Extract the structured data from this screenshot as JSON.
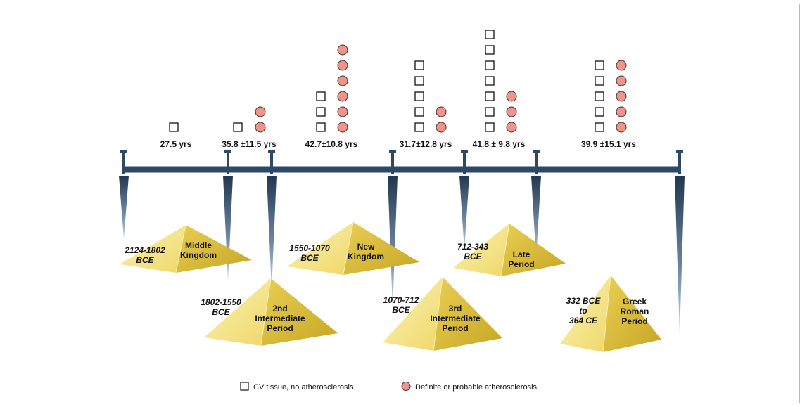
{
  "legend": {
    "no_athero_label": "CV tissue, no atherosclerosis",
    "athero_label": "Definite or probable atherosclerosis"
  },
  "colors": {
    "timeline": "#2e4968",
    "circle_fill": "#f0948a",
    "pyramid_light": "#f4e27c",
    "pyramid_dark": "#d6ba33"
  },
  "groups": [
    {
      "age": "27.5 yrs",
      "squares": 1,
      "circles": 0
    },
    {
      "age": "35.8 ±11.5 yrs",
      "squares": 1,
      "circles": 2
    },
    {
      "age": "42.7±10.8 yrs",
      "squares": 3,
      "circles": 6
    },
    {
      "age": "31.7±12.8 yrs",
      "squares": 5,
      "circles": 2
    },
    {
      "age": "41.8 ± 9.8 yrs",
      "squares": 7,
      "circles": 3
    },
    {
      "age": "39.9 ±15.1 yrs",
      "squares": 5,
      "circles": 5
    }
  ],
  "periods": [
    {
      "date": [
        "2124-1802",
        "BCE"
      ],
      "name": [
        "Middle",
        "Kingdom"
      ]
    },
    {
      "date": [
        "1802-1550",
        "BCE"
      ],
      "name": [
        "2nd",
        "Intermediate",
        "Period"
      ]
    },
    {
      "date": [
        "1550-1070",
        "BCE"
      ],
      "name": [
        "New",
        "Kingdom"
      ]
    },
    {
      "date": [
        "1070-712",
        "BCE"
      ],
      "name": [
        "3rd",
        "Intermediate",
        "Period"
      ]
    },
    {
      "date": [
        "712-343",
        "BCE"
      ],
      "name": [
        "Late",
        "Period"
      ]
    },
    {
      "date": [
        "332 BCE",
        "to",
        "364 CE"
      ],
      "name": [
        "Greek",
        "Roman",
        "Period"
      ]
    }
  ]
}
